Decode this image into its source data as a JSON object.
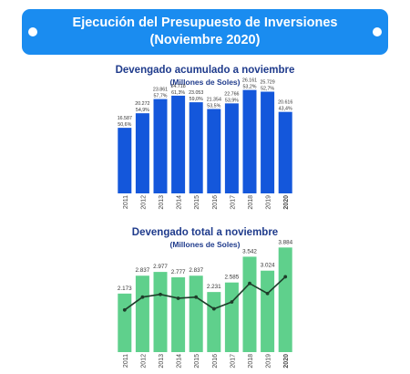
{
  "banner": {
    "line1": "Ejecución del Presupuesto de Inversiones",
    "line2": "(Noviembre 2020)"
  },
  "colors": {
    "banner": "#1a8cf0",
    "bars_top": "#1457db",
    "bars_bottom": "#5fd08c",
    "line": "#1e3d2a",
    "title": "#1f3b8c"
  },
  "chart_data": [
    {
      "type": "bar",
      "title": "Devengado acumulado a noviembre",
      "subtitle": "(Millones de Soles)",
      "categories": [
        "2011",
        "2012",
        "2013",
        "2014",
        "2015",
        "2016",
        "2017",
        "2018",
        "2019",
        "2020"
      ],
      "values": [
        16587,
        20272,
        23861,
        24718,
        23053,
        21354,
        22766,
        26161,
        25729,
        20616
      ],
      "value_labels": [
        "16.587",
        "20.272",
        "23.861",
        "24.718",
        "23.053",
        "21.354",
        "22.766",
        "26.161",
        "25.729",
        "20.616"
      ],
      "pct_labels": [
        "50,6%",
        "54,9%",
        "57,7%",
        "61,3%",
        "59,0%",
        "53,5%",
        "53,9%",
        "53,2%",
        "52,7%",
        "43,4%"
      ],
      "ylim": [
        0,
        30000
      ]
    },
    {
      "type": "bar",
      "title": "Devengado total a noviembre",
      "subtitle": "(Millones de Soles)",
      "categories": [
        "2011",
        "2012",
        "2013",
        "2014",
        "2015",
        "2016",
        "2017",
        "2018",
        "2019",
        "2020"
      ],
      "values": [
        2173,
        2837,
        2977,
        2777,
        2837,
        2231,
        2585,
        3542,
        3024,
        3884
      ],
      "value_labels": [
        "2.173",
        "2.837",
        "2.977",
        "2.777",
        "2.837",
        "2.231",
        "2.585",
        "3.542",
        "3.024",
        "3.884"
      ],
      "overlay_line": true,
      "ylim": [
        0,
        4200
      ]
    }
  ]
}
